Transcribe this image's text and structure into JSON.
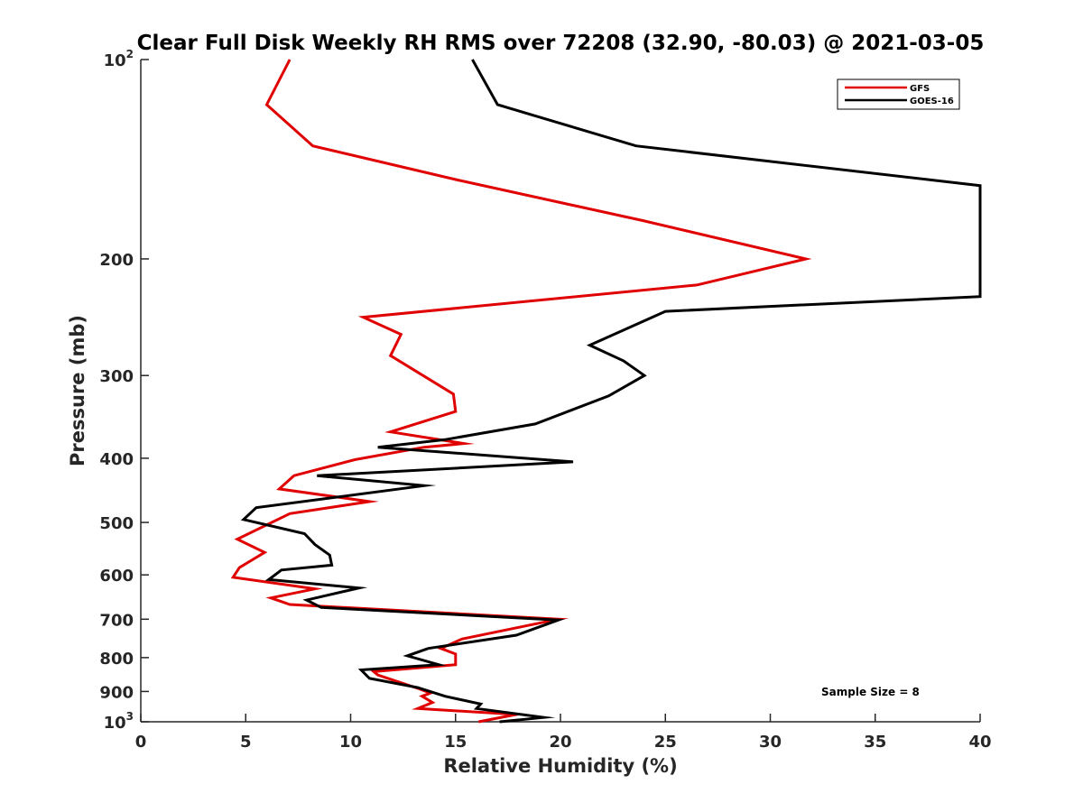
{
  "chart_data": {
    "type": "line",
    "title": "Clear Full Disk Weekly RH RMS over 72208 (32.90, -80.03) @ 2021-03-05",
    "xlabel": "Relative Humidity (%)",
    "ylabel": "Pressure (mb)",
    "xlim": [
      0,
      40
    ],
    "ylim": [
      100,
      1000
    ],
    "yscale": "log",
    "yreversed": true,
    "grid": false,
    "legend_position": "top-right",
    "annotation": "Sample Size = 8",
    "x_ticks": [
      {
        "value": 0,
        "label": "0"
      },
      {
        "value": 5,
        "label": "5"
      },
      {
        "value": 10,
        "label": "10"
      },
      {
        "value": 15,
        "label": "15"
      },
      {
        "value": 20,
        "label": "20"
      },
      {
        "value": 25,
        "label": "25"
      },
      {
        "value": 30,
        "label": "30"
      },
      {
        "value": 35,
        "label": "35"
      },
      {
        "value": 40,
        "label": "40"
      }
    ],
    "y_ticks": [
      {
        "value": 100,
        "label": "10",
        "sup": "2"
      },
      {
        "value": 200,
        "label": "200"
      },
      {
        "value": 300,
        "label": "300"
      },
      {
        "value": 400,
        "label": "400"
      },
      {
        "value": 500,
        "label": "500"
      },
      {
        "value": 600,
        "label": "600"
      },
      {
        "value": 700,
        "label": "700"
      },
      {
        "value": 800,
        "label": "800"
      },
      {
        "value": 900,
        "label": "900"
      },
      {
        "value": 1000,
        "label": "10",
        "sup": "3"
      }
    ],
    "series": [
      {
        "name": "GFS",
        "color": "#e00000",
        "points": [
          {
            "x": 7.1,
            "y": 100
          },
          {
            "x": 6.0,
            "y": 117
          },
          {
            "x": 8.2,
            "y": 135
          },
          {
            "x": 15.1,
            "y": 152
          },
          {
            "x": 23.9,
            "y": 175
          },
          {
            "x": 31.7,
            "y": 200
          },
          {
            "x": 26.5,
            "y": 219
          },
          {
            "x": 10.6,
            "y": 245
          },
          {
            "x": 12.4,
            "y": 260
          },
          {
            "x": 11.9,
            "y": 280
          },
          {
            "x": 14.9,
            "y": 320
          },
          {
            "x": 15.0,
            "y": 340
          },
          {
            "x": 11.9,
            "y": 365
          },
          {
            "x": 15.4,
            "y": 380
          },
          {
            "x": 13.5,
            "y": 385
          },
          {
            "x": 10.2,
            "y": 402
          },
          {
            "x": 7.3,
            "y": 425
          },
          {
            "x": 6.6,
            "y": 445
          },
          {
            "x": 10.9,
            "y": 465
          },
          {
            "x": 7.1,
            "y": 485
          },
          {
            "x": 4.6,
            "y": 530
          },
          {
            "x": 5.9,
            "y": 555
          },
          {
            "x": 4.7,
            "y": 585
          },
          {
            "x": 4.4,
            "y": 605
          },
          {
            "x": 8.3,
            "y": 630
          },
          {
            "x": 6.2,
            "y": 650
          },
          {
            "x": 7.1,
            "y": 665
          },
          {
            "x": 19.9,
            "y": 700
          },
          {
            "x": 15.3,
            "y": 750
          },
          {
            "x": 14.3,
            "y": 775
          },
          {
            "x": 15.0,
            "y": 790
          },
          {
            "x": 15.0,
            "y": 820
          },
          {
            "x": 11.1,
            "y": 840
          },
          {
            "x": 11.3,
            "y": 850
          },
          {
            "x": 13.2,
            "y": 890
          },
          {
            "x": 13.8,
            "y": 905
          },
          {
            "x": 13.4,
            "y": 915
          },
          {
            "x": 13.9,
            "y": 935
          },
          {
            "x": 13.2,
            "y": 955
          },
          {
            "x": 17.9,
            "y": 975
          },
          {
            "x": 16.1,
            "y": 1000
          }
        ]
      },
      {
        "name": "GOES-16",
        "color": "#000000",
        "points": [
          {
            "x": 15.8,
            "y": 100
          },
          {
            "x": 17.0,
            "y": 117
          },
          {
            "x": 23.6,
            "y": 135
          },
          {
            "x": 40.0,
            "y": 155
          },
          {
            "x": 40.0,
            "y": 228
          },
          {
            "x": 25.0,
            "y": 240
          },
          {
            "x": 21.4,
            "y": 270
          },
          {
            "x": 23.0,
            "y": 285
          },
          {
            "x": 24.0,
            "y": 300
          },
          {
            "x": 22.3,
            "y": 322
          },
          {
            "x": 18.8,
            "y": 355
          },
          {
            "x": 14.5,
            "y": 375
          },
          {
            "x": 11.3,
            "y": 385
          },
          {
            "x": 20.6,
            "y": 405
          },
          {
            "x": 8.4,
            "y": 425
          },
          {
            "x": 13.5,
            "y": 440
          },
          {
            "x": 5.5,
            "y": 475
          },
          {
            "x": 4.9,
            "y": 495
          },
          {
            "x": 7.8,
            "y": 520
          },
          {
            "x": 8.3,
            "y": 540
          },
          {
            "x": 9.0,
            "y": 560
          },
          {
            "x": 9.1,
            "y": 580
          },
          {
            "x": 6.7,
            "y": 590
          },
          {
            "x": 6.1,
            "y": 610
          },
          {
            "x": 10.4,
            "y": 628
          },
          {
            "x": 7.9,
            "y": 655
          },
          {
            "x": 8.6,
            "y": 672
          },
          {
            "x": 19.9,
            "y": 702
          },
          {
            "x": 17.9,
            "y": 740
          },
          {
            "x": 13.7,
            "y": 775
          },
          {
            "x": 12.7,
            "y": 795
          },
          {
            "x": 14.2,
            "y": 820
          },
          {
            "x": 10.5,
            "y": 835
          },
          {
            "x": 10.9,
            "y": 860
          },
          {
            "x": 13.2,
            "y": 888
          },
          {
            "x": 14.5,
            "y": 915
          },
          {
            "x": 16.2,
            "y": 940
          },
          {
            "x": 16.0,
            "y": 955
          },
          {
            "x": 19.2,
            "y": 985
          },
          {
            "x": 17.1,
            "y": 1000
          }
        ]
      }
    ]
  }
}
